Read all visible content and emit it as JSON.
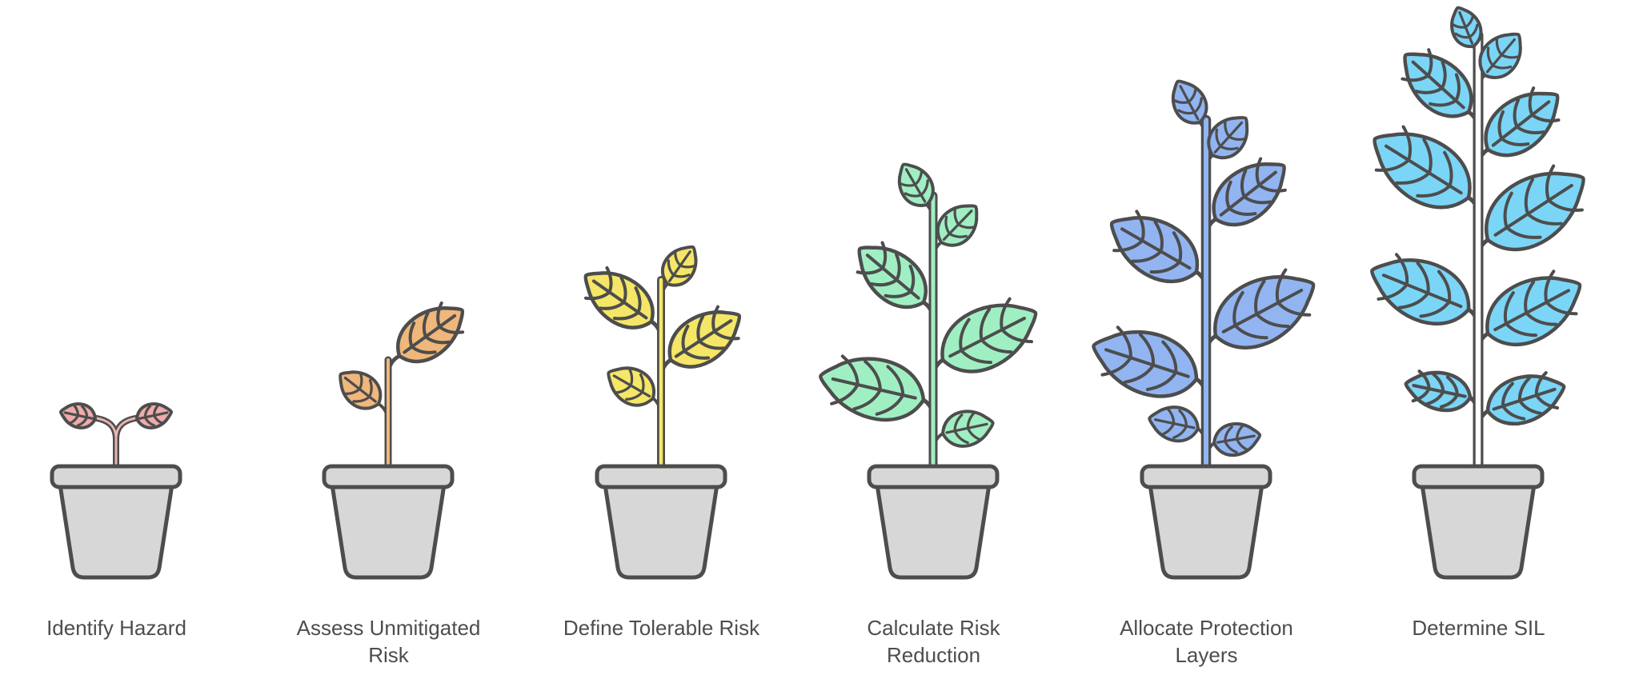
{
  "figure": {
    "background_color": "#ffffff",
    "outline_color": "#4d4d4d",
    "pot_color": "#d7d7d7",
    "label_color": "#4d4d4d",
    "stages": [
      {
        "id": "identify-hazard",
        "label": "Identify Hazard",
        "leaf_color": "#efabab",
        "stem_color": "#e9b3b1",
        "leaf_count": 2,
        "growth_level": 1
      },
      {
        "id": "assess-unmitigated-risk",
        "label": "Assess Unmitigated Risk",
        "leaf_color": "#f0b77a",
        "stem_color": "#f0b77a",
        "leaf_count": 2,
        "growth_level": 2
      },
      {
        "id": "define-tolerable-risk",
        "label": "Define Tolerable Risk",
        "leaf_color": "#f5e667",
        "stem_color": "#f5e667",
        "leaf_count": 4,
        "growth_level": 3
      },
      {
        "id": "calculate-risk-reduction",
        "label": "Calculate Risk Reduction",
        "leaf_color": "#a0efc3",
        "stem_color": "#a0efc3",
        "leaf_count": 6,
        "growth_level": 4
      },
      {
        "id": "allocate-protection-layers",
        "label": "Allocate Protection Layers",
        "leaf_color": "#92b5f2",
        "stem_color": "#92b5f2",
        "leaf_count": 8,
        "growth_level": 5
      },
      {
        "id": "determine-sil",
        "label": "Determine SIL",
        "leaf_color": "#7bd5f6",
        "stem_color": "#ffffff",
        "leaf_count": 10,
        "growth_level": 6
      }
    ]
  }
}
